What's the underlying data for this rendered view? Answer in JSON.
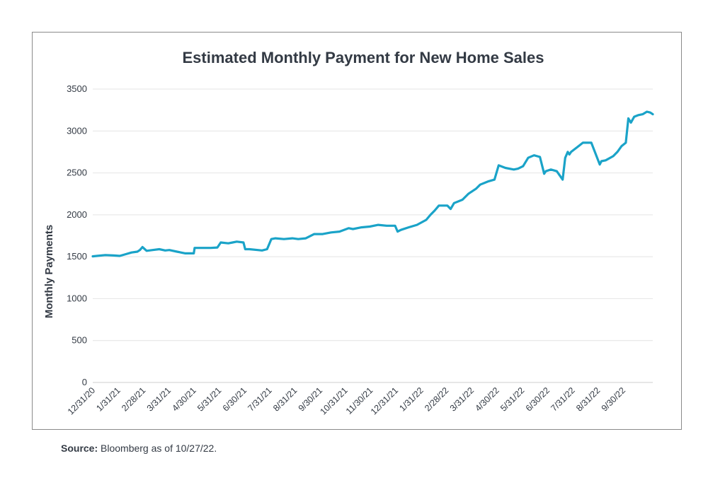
{
  "chart_data": {
    "type": "line",
    "title": "Estimated Monthly Payment for New Home Sales",
    "xlabel": "",
    "ylabel": "Monthly Payments",
    "ylim": [
      0,
      3500
    ],
    "yticks": [
      0,
      500,
      1000,
      1500,
      2000,
      2500,
      3000,
      3500
    ],
    "x_tick_labels": [
      "12/31/20",
      "1/31/21",
      "2/28/21",
      "3/31/21",
      "4/30/21",
      "5/31/21",
      "6/30/21",
      "7/31/21",
      "8/31/21",
      "9/30/21",
      "10/31/21",
      "11/30/21",
      "12/31/21",
      "1/31/22",
      "2/28/22",
      "3/31/22",
      "4/30/22",
      "5/31/22",
      "6/30/22",
      "7/31/22",
      "8/31/22",
      "9/30/22"
    ],
    "grid": true,
    "line_color": "#1aa3c8",
    "series": [
      {
        "x": [
          "2020-12-31",
          "2021-01-05",
          "2021-01-15",
          "2021-01-25",
          "2021-02-01",
          "2021-02-08",
          "2021-02-15",
          "2021-02-22",
          "2021-02-25",
          "2021-02-28",
          "2021-03-05",
          "2021-03-12",
          "2021-03-20",
          "2021-03-27",
          "2021-04-01",
          "2021-04-10",
          "2021-04-20",
          "2021-04-30",
          "2021-05-01",
          "2021-05-10",
          "2021-05-20",
          "2021-05-28",
          "2021-06-01",
          "2021-06-10",
          "2021-06-15",
          "2021-06-20",
          "2021-06-28",
          "2021-06-30",
          "2021-07-05",
          "2021-07-15",
          "2021-07-20",
          "2021-07-26",
          "2021-07-31",
          "2021-08-05",
          "2021-08-15",
          "2021-08-25",
          "2021-09-01",
          "2021-09-10",
          "2021-09-20",
          "2021-09-30",
          "2021-10-10",
          "2021-10-20",
          "2021-10-31",
          "2021-11-05",
          "2021-11-15",
          "2021-11-25",
          "2021-12-05",
          "2021-12-15",
          "2021-12-25",
          "2021-12-28",
          "2022-01-01",
          "2022-01-10",
          "2022-01-20",
          "2022-01-31",
          "2022-02-05",
          "2022-02-10",
          "2022-02-15",
          "2022-02-25",
          "2022-03-01",
          "2022-03-05",
          "2022-03-15",
          "2022-03-22",
          "2022-03-31",
          "2022-04-05",
          "2022-04-15",
          "2022-04-22",
          "2022-04-27",
          "2022-05-05",
          "2022-05-15",
          "2022-05-20",
          "2022-05-26",
          "2022-06-01",
          "2022-06-08",
          "2022-06-15",
          "2022-06-20",
          "2022-06-22",
          "2022-06-28",
          "2022-07-05",
          "2022-07-12",
          "2022-07-15",
          "2022-07-18",
          "2022-07-20",
          "2022-07-22",
          "2022-07-31",
          "2022-08-05",
          "2022-08-15",
          "2022-08-25",
          "2022-08-27",
          "2022-09-01",
          "2022-09-10",
          "2022-09-15",
          "2022-09-20",
          "2022-09-25",
          "2022-09-28",
          "2022-10-01",
          "2022-10-05",
          "2022-10-10",
          "2022-10-15",
          "2022-10-20",
          "2022-10-24",
          "2022-10-27"
        ],
        "y": [
          1505,
          1510,
          1520,
          1515,
          1510,
          1530,
          1550,
          1560,
          1580,
          1615,
          1570,
          1580,
          1590,
          1575,
          1580,
          1560,
          1540,
          1540,
          1605,
          1605,
          1605,
          1610,
          1670,
          1660,
          1670,
          1680,
          1670,
          1590,
          1590,
          1580,
          1575,
          1590,
          1710,
          1720,
          1710,
          1720,
          1710,
          1720,
          1770,
          1770,
          1790,
          1800,
          1840,
          1830,
          1850,
          1860,
          1880,
          1870,
          1870,
          1800,
          1820,
          1850,
          1880,
          1940,
          2000,
          2050,
          2110,
          2110,
          2070,
          2140,
          2180,
          2250,
          2310,
          2360,
          2400,
          2420,
          2590,
          2560,
          2540,
          2550,
          2580,
          2680,
          2710,
          2690,
          2490,
          2520,
          2540,
          2520,
          2420,
          2680,
          2750,
          2720,
          2750,
          2820,
          2860,
          2860,
          2600,
          2640,
          2650,
          2700,
          2750,
          2820,
          2860,
          3150,
          3100,
          3170,
          3190,
          3200,
          3230,
          3220,
          3200
        ]
      }
    ]
  },
  "source": {
    "label": "Source:",
    "text": "Bloomberg as of 10/27/22."
  }
}
